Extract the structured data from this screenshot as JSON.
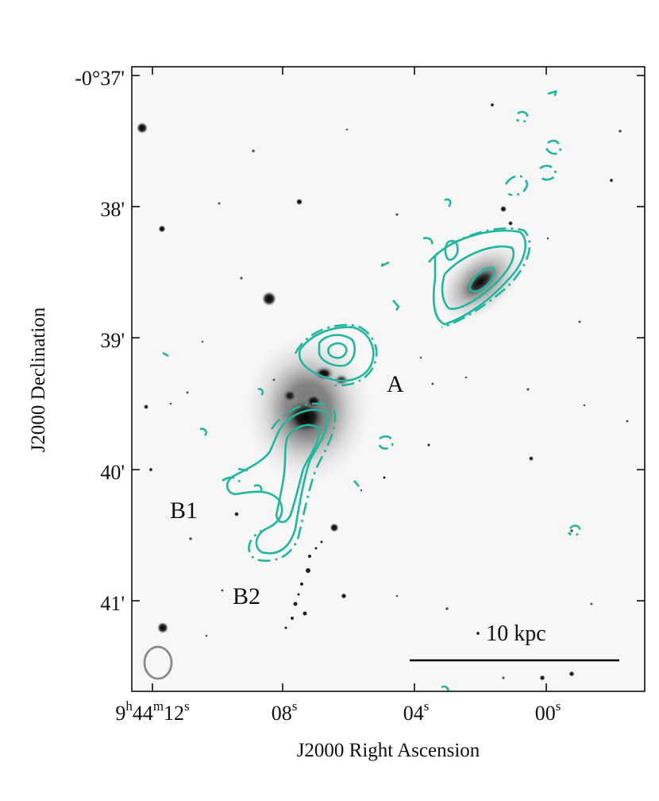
{
  "axes": {
    "ylabel": "J2000 Declination",
    "xlabel": "J2000 Right Ascension",
    "yticks": [
      {
        "label": "-0°37'",
        "value": "-0°37'"
      },
      {
        "label": "38'",
        "value": "-0°38'"
      },
      {
        "label": "39'",
        "value": "-0°39'"
      },
      {
        "label": "40'",
        "value": "-0°40'"
      },
      {
        "label": "41'",
        "value": "-0°41'"
      }
    ],
    "xticks": [
      {
        "main": "9",
        "h": "h",
        "mid": "44",
        "m": "m",
        "sec": "12",
        "s": "s",
        "value": "9h44m12s"
      },
      {
        "main": "08",
        "s": "s",
        "value": "9h44m08s"
      },
      {
        "main": "04",
        "s": "s",
        "value": "9h44m04s"
      },
      {
        "main": "00",
        "s": "s",
        "value": "9h44m00s"
      }
    ]
  },
  "labels": {
    "A": "A",
    "B1": "B1",
    "B2": "B2"
  },
  "scalebar": {
    "label": "10 kpc"
  },
  "colors": {
    "contour": "#1fb89e",
    "beam": "#8a8a8a",
    "frame": "#000000",
    "background": "#f7f7f7"
  }
}
